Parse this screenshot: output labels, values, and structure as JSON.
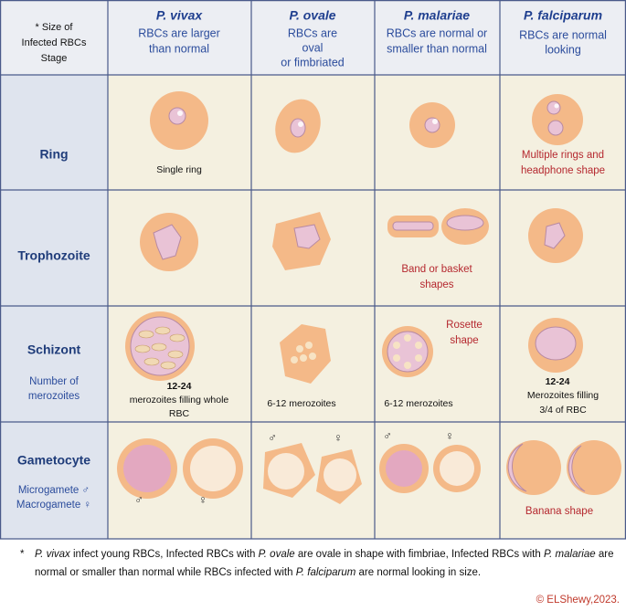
{
  "header": {
    "stage_label": [
      "* Size of",
      "Infected RBCs",
      "Stage"
    ],
    "columns": [
      {
        "species": "P. vivax",
        "description": [
          "RBCs are larger",
          "than normal"
        ]
      },
      {
        "species": "P. ovale",
        "description": [
          "RBCs are",
          "oval",
          "or fimbriated"
        ]
      },
      {
        "species": "P. malariae",
        "description": [
          "RBCs are normal or",
          "smaller than normal"
        ]
      },
      {
        "species": "P. falciparum",
        "description": [
          "RBCs are normal",
          "looking"
        ]
      }
    ]
  },
  "rows": [
    {
      "stage": "Ring",
      "notes": [],
      "cells": [
        {
          "labels": [
            "Single ring"
          ]
        },
        {
          "labels": []
        },
        {
          "labels": []
        },
        {
          "labels": [
            "Multiple rings and",
            "headphone shape"
          ]
        }
      ]
    },
    {
      "stage": "Trophozoite",
      "notes": [],
      "cells": [
        {
          "labels": []
        },
        {
          "labels": []
        },
        {
          "labels": [
            "Band or basket",
            "shapes"
          ]
        },
        {
          "labels": []
        }
      ]
    },
    {
      "stage": "Schizont",
      "notes": [
        "Number of",
        "merozoites"
      ],
      "cells": [
        {
          "labels": [
            "12-24",
            "merozoites filling whole",
            "RBC"
          ]
        },
        {
          "labels": [
            "6-12 merozoites"
          ]
        },
        {
          "labels": [
            "Rosette",
            "shape",
            "6-12 merozoites"
          ]
        },
        {
          "labels": [
            "12-24",
            "Merozoites filling",
            "3/4 of RBC"
          ]
        }
      ]
    },
    {
      "stage": "Gametocyte",
      "notes": [
        "Microgamete ♂",
        "Macrogamete ♀"
      ],
      "cells": [
        {
          "labels": [
            "♂",
            "♀"
          ]
        },
        {
          "labels": [
            "♂",
            "♀"
          ]
        },
        {
          "labels": [
            "♂",
            "♀"
          ]
        },
        {
          "labels": [
            "Banana shape"
          ]
        }
      ]
    }
  ],
  "footnote": {
    "marker": "*",
    "lines": [
      [
        {
          "text": "P. vivax",
          "italic": true
        },
        {
          "text": " infect young RBCs, Infected RBCs with ",
          "italic": false
        },
        {
          "text": "P. ovale",
          "italic": true
        },
        {
          "text": " are ovale in shape with fimbriae, Infected RBCs with ",
          "italic": false
        },
        {
          "text": "P. malariae",
          "italic": true
        },
        {
          "text": " are",
          "italic": false
        }
      ],
      [
        {
          "text": "normal or smaller than normal while RBCs infected with ",
          "italic": false
        },
        {
          "text": "P. falciparum",
          "italic": true
        },
        {
          "text": " are normal looking in size.",
          "italic": false
        }
      ]
    ]
  },
  "copyright": "© ELShewy,2023."
}
